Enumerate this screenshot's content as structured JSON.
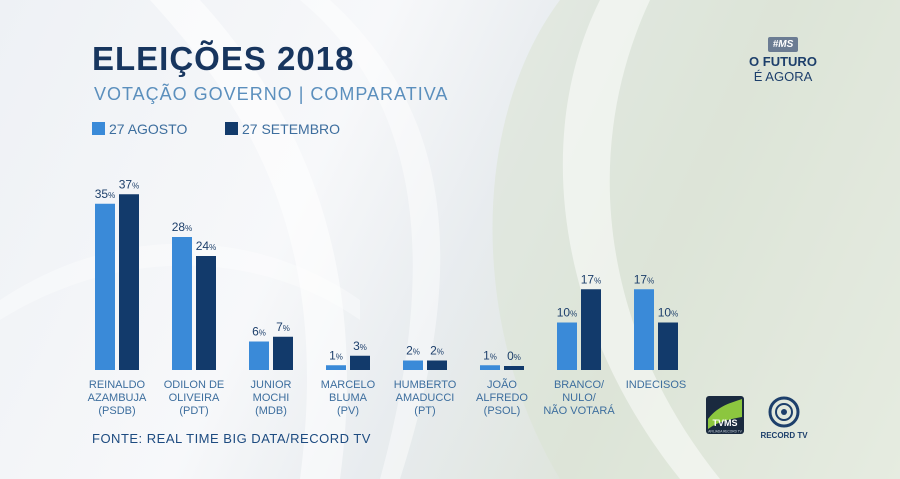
{
  "header": {
    "title": "ELEIÇÕES 2018",
    "subtitle": "VOTAÇÃO GOVERNO | COMPARATIVA"
  },
  "brand": {
    "tag": "#MS",
    "line1": "O FUTURO",
    "line2": "É AGORA"
  },
  "source": "FONTE: REAL TIME BIG DATA/RECORD TV",
  "logos": {
    "tvms": "TVMS",
    "tvms_caption": "AFILIADA RECORD TV",
    "record": "RECORD TV"
  },
  "colors": {
    "series1": "#3a8ad8",
    "series2": "#123a6b",
    "label": "#3d6e9e",
    "value_label": "#1d3f6b"
  },
  "chart_data": {
    "type": "bar",
    "categories": [
      [
        "REINALDO",
        "AZAMBUJA",
        "(PSDB)"
      ],
      [
        "ODILON DE",
        "OLIVEIRA",
        "(PDT)"
      ],
      [
        "JUNIOR",
        "MOCHI",
        "(MDB)"
      ],
      [
        "MARCELO",
        "BLUMA",
        "(PV)"
      ],
      [
        "HUMBERTO",
        "AMADUCCI",
        "(PT)"
      ],
      [
        "JOÃO",
        "ALFREDO",
        "(PSOL)"
      ],
      [
        "BRANCO/",
        "NULO/",
        "NÃO VOTARÁ"
      ],
      [
        "INDECISOS"
      ]
    ],
    "series": [
      {
        "name": "27 AGOSTO",
        "values": [
          35,
          28,
          6,
          1,
          2,
          1,
          10,
          17
        ]
      },
      {
        "name": "27 SETEMBRO",
        "values": [
          37,
          24,
          7,
          3,
          2,
          0,
          17,
          10
        ]
      }
    ],
    "value_suffix": "%",
    "ylim": [
      0,
      40
    ],
    "legend": "top-left"
  }
}
